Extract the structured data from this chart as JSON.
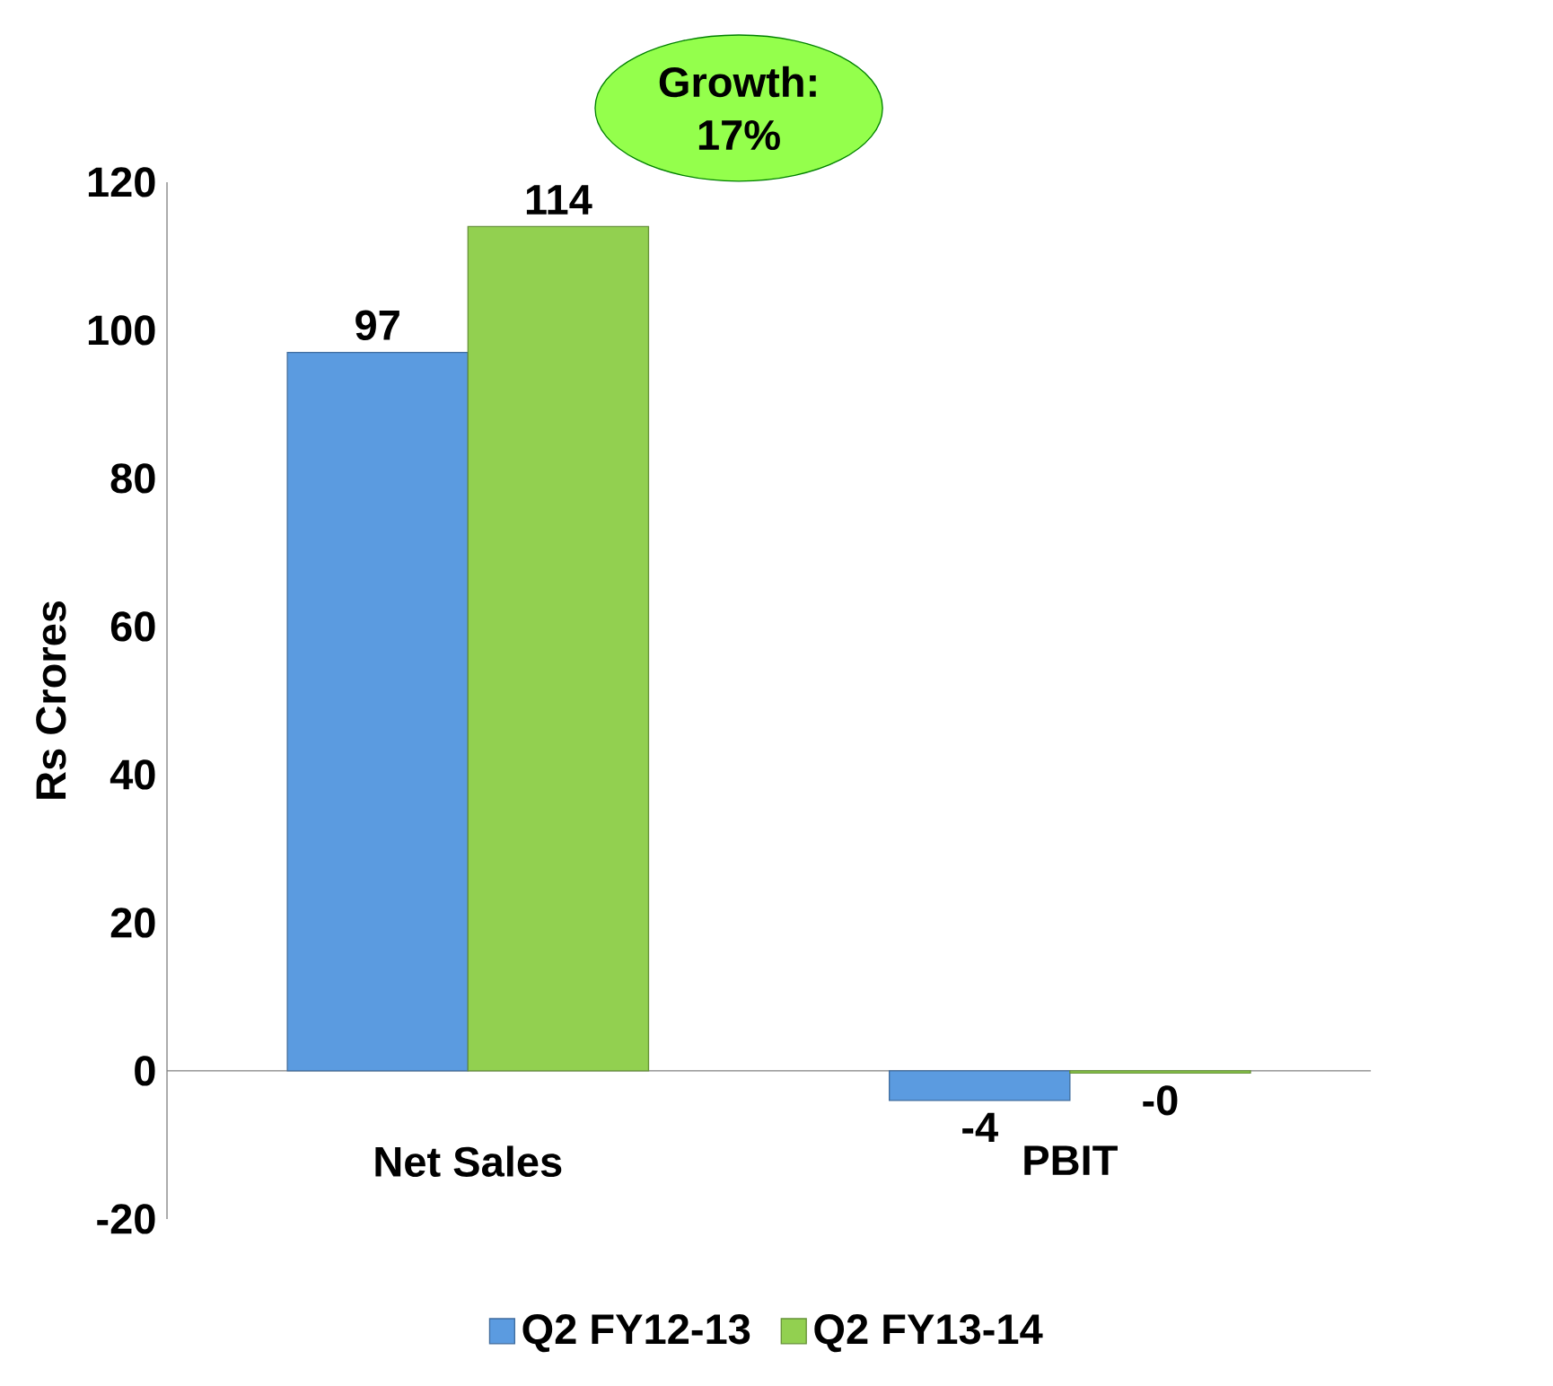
{
  "chart_data": {
    "type": "bar",
    "ylabel": "Rs Crores",
    "categories": [
      "Net Sales",
      "PBIT"
    ],
    "series": [
      {
        "name": "Q2 FY12-13",
        "color": "#5b9be0",
        "values": [
          97,
          -4
        ],
        "value_labels": [
          "97",
          "-4"
        ]
      },
      {
        "name": "Q2 FY13-14",
        "color": "#92d050",
        "values": [
          114,
          -0.3
        ],
        "value_labels": [
          "114",
          "-0"
        ]
      }
    ],
    "ylim": [
      -20,
      120
    ],
    "yticks": [
      -20,
      0,
      20,
      40,
      60,
      80,
      100,
      120
    ],
    "legend": "bottom",
    "annotations": [
      "Growth: 17%"
    ]
  }
}
